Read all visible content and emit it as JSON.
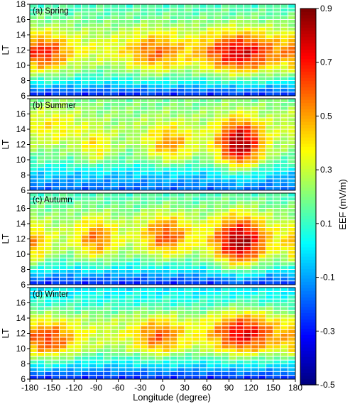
{
  "chart_data": {
    "type": "heatmap",
    "xlabel": "Longitude (degree)",
    "ylabel": "LT",
    "xlim": [
      -180,
      180
    ],
    "ylim": [
      6,
      18
    ],
    "xticks": [
      -180,
      -150,
      -120,
      -90,
      -60,
      -30,
      0,
      30,
      60,
      90,
      120,
      150,
      180
    ],
    "yticks": [
      6,
      8,
      10,
      12,
      14,
      16,
      18
    ],
    "cell_width_deg": 10,
    "cell_height_hr": 0.5,
    "colorbar": {
      "label": "EEF (mV/m)",
      "range": [
        -0.5,
        0.9
      ],
      "ticks": [
        -0.5,
        -0.3,
        -0.1,
        0.1,
        0.3,
        0.5,
        0.7,
        0.9
      ],
      "colormap": "jet"
    },
    "model_note": "values approximated per cell: base(LT) + sum of regional peaks (lon, LT, amplitude, lon-width, LT-width)",
    "panels": [
      {
        "title": "(a) Spring",
        "base": [
          -0.3,
          0.05,
          0.25,
          0.35,
          0.28,
          0.18,
          0.12
        ],
        "peaks": [
          [
            -160,
            11.5,
            0.35,
            22,
            1.8
          ],
          [
            -10,
            11.5,
            0.25,
            25,
            2.0
          ],
          [
            105,
            11.5,
            0.45,
            35,
            2.0
          ]
        ]
      },
      {
        "title": "(b) Summer",
        "base": [
          -0.2,
          -0.05,
          0.15,
          0.22,
          0.25,
          0.22,
          0.18
        ],
        "peaks": [
          [
            -150,
            14.5,
            0.15,
            30,
            1.8
          ],
          [
            -90,
            11.5,
            0.2,
            15,
            1.5
          ],
          [
            10,
            12.0,
            0.3,
            22,
            1.8
          ],
          [
            105,
            12.0,
            0.65,
            22,
            2.3
          ]
        ]
      },
      {
        "title": "(c) Autumn",
        "base": [
          -0.3,
          0.0,
          0.2,
          0.28,
          0.25,
          0.18,
          0.12
        ],
        "peaks": [
          [
            -175,
            11.0,
            0.25,
            15,
            2.0
          ],
          [
            -90,
            12.0,
            0.3,
            18,
            2.0
          ],
          [
            5,
            12.5,
            0.35,
            22,
            2.0
          ],
          [
            105,
            11.5,
            0.6,
            25,
            2.5
          ]
        ]
      },
      {
        "title": "(d) Winter",
        "base": [
          -0.3,
          0.0,
          0.25,
          0.32,
          0.25,
          0.08,
          0.0
        ],
        "peaks": [
          [
            -155,
            11.0,
            0.35,
            25,
            1.8
          ],
          [
            -5,
            11.5,
            0.3,
            22,
            1.8
          ],
          [
            110,
            12.0,
            0.45,
            30,
            2.0
          ]
        ]
      }
    ]
  }
}
